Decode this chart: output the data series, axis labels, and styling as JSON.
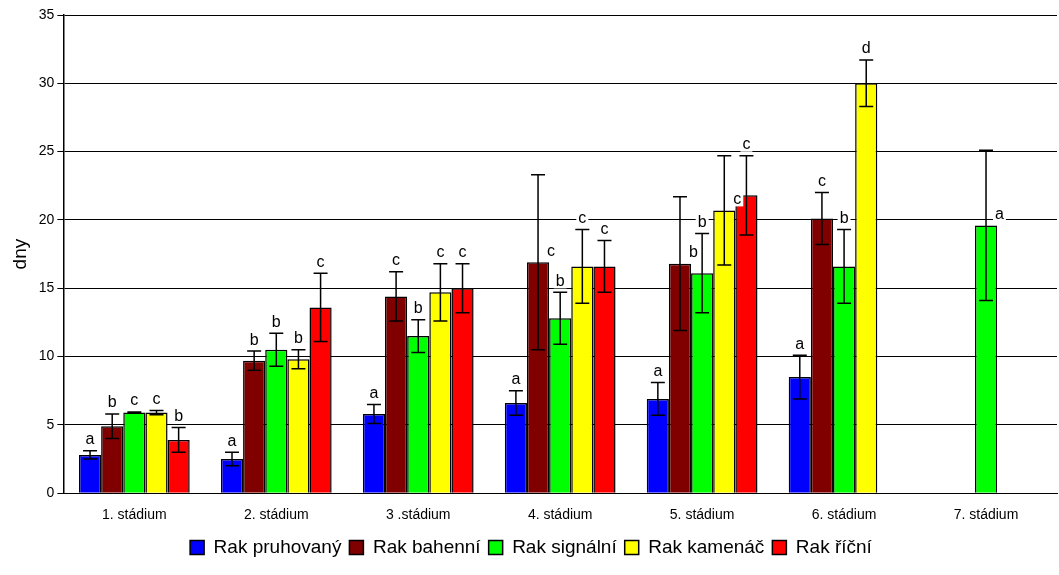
{
  "chart_data": {
    "type": "bar",
    "ylabel": "dny",
    "categories": [
      "1. stádium",
      "2. stádium",
      "3 .stádium",
      "4. stádium",
      "5. stádium",
      "6. stádium",
      "7. stádium"
    ],
    "series": [
      {
        "name": "Rak pruhovaný",
        "color": "#0000ff",
        "values": [
          2.8,
          2.5,
          5.8,
          6.6,
          6.9,
          8.5,
          null
        ],
        "errors": [
          0.3,
          0.5,
          0.7,
          0.9,
          1.2,
          1.6,
          null
        ],
        "value_labels": [
          "a",
          "a",
          "a",
          "a",
          "a",
          "a",
          null
        ]
      },
      {
        "name": "Rak bahenní",
        "color": "#800000",
        "values": [
          4.9,
          9.7,
          14.4,
          16.9,
          16.8,
          20.1,
          null
        ],
        "errors": [
          0.9,
          0.7,
          1.8,
          6.4,
          4.9,
          1.9,
          null
        ],
        "value_labels": [
          "b",
          "b",
          "c",
          "c",
          "b",
          "c",
          null
        ]
      },
      {
        "name": "Rak signální",
        "color": "#00ff00",
        "values": [
          5.9,
          10.5,
          11.5,
          12.8,
          16.1,
          16.6,
          19.6
        ],
        "errors": [
          0.05,
          1.2,
          1.2,
          1.9,
          2.9,
          2.7,
          5.5
        ],
        "value_labels": [
          "c",
          "b",
          "b",
          "b",
          "b",
          "b",
          "a"
        ]
      },
      {
        "name": "Rak kamenáč",
        "color": "#ffff00",
        "values": [
          5.9,
          9.8,
          14.7,
          16.6,
          20.7,
          30.0,
          null
        ],
        "errors": [
          0.15,
          0.7,
          2.1,
          2.7,
          4.0,
          1.7,
          null
        ],
        "value_labels": [
          "c",
          "b",
          "c",
          "c",
          "c",
          "d",
          null
        ]
      },
      {
        "name": "Rak říční",
        "color": "#ff0000",
        "values": [
          3.9,
          13.6,
          15.0,
          16.6,
          21.8,
          null,
          null
        ],
        "errors": [
          0.9,
          2.5,
          1.8,
          1.9,
          2.9,
          null,
          null
        ],
        "value_labels": [
          "b",
          "c",
          "c",
          "c",
          "c",
          null,
          null
        ]
      }
    ],
    "ylim": [
      0,
      35
    ],
    "yticks": [
      0,
      5,
      10,
      15,
      20,
      25,
      30,
      35
    ],
    "grid": "y",
    "legend": "bottom"
  }
}
